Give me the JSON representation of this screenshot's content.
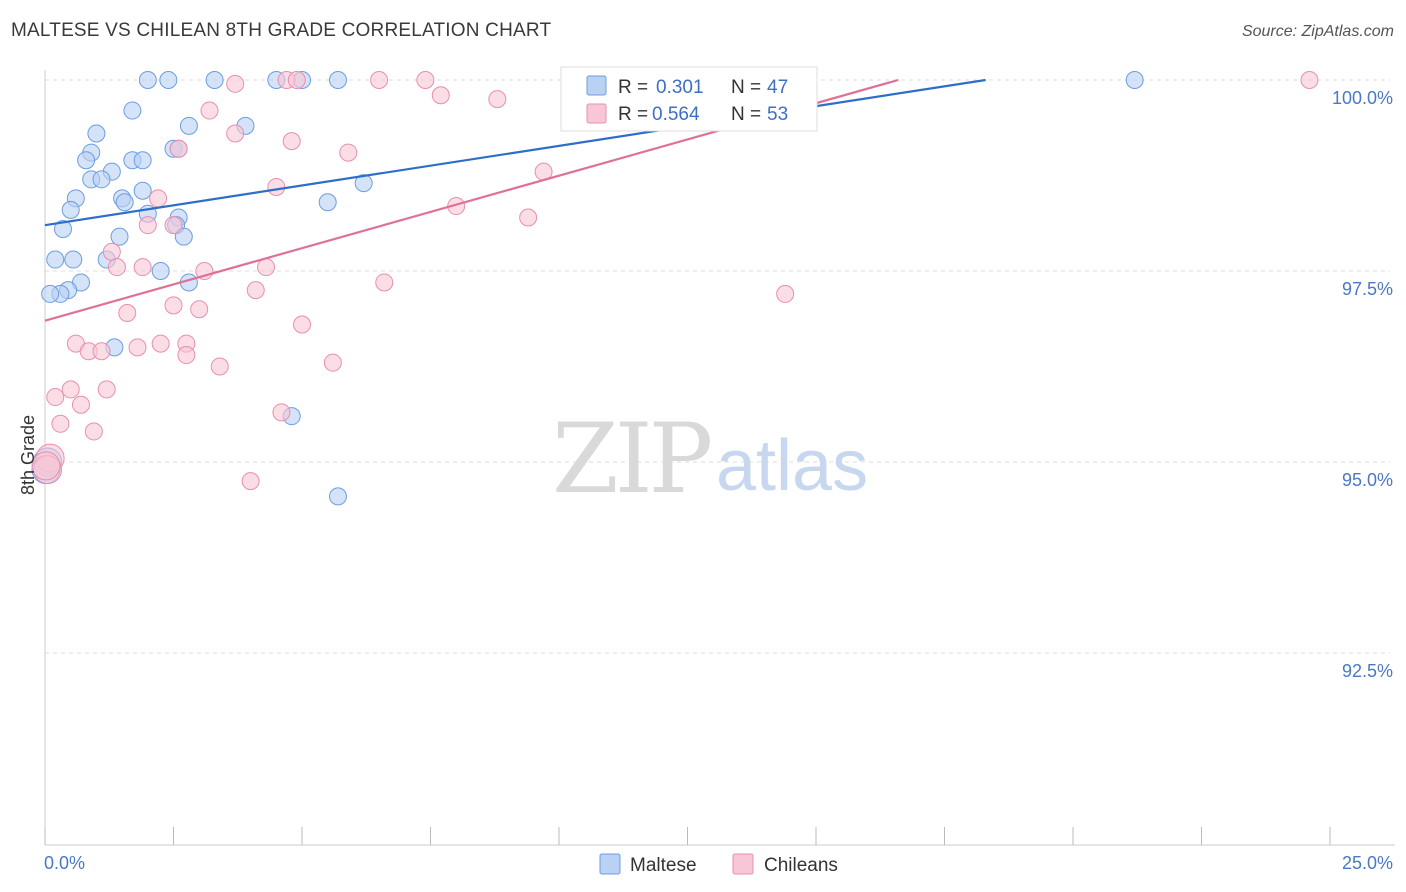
{
  "title": "MALTESE VS CHILEAN 8TH GRADE CORRELATION CHART",
  "source": "Source: ZipAtlas.com",
  "watermark": {
    "zip": "ZIP",
    "atlas": "atlas"
  },
  "colors": {
    "maltese_fill": "#b9d1f3",
    "maltese_stroke": "#6d9de0",
    "maltese_line": "#2d6ec9",
    "chilean_fill": "#f8c6d6",
    "chilean_stroke": "#e88fae",
    "chilean_line": "#e0709a",
    "grid": "#dddddd",
    "axis_text": "#4a78c7"
  },
  "legend": {
    "r_label": "R =",
    "n_label": "N =",
    "maltese": {
      "r": "0.301",
      "n": "47"
    },
    "chileans": {
      "r": "0.564",
      "n": "53"
    }
  },
  "chart_data": {
    "type": "scatter",
    "title": "MALTESE VS CHILEAN 8TH GRADE CORRELATION CHART",
    "xlabel": "",
    "ylabel": "8th Grade",
    "xlim": [
      0,
      25
    ],
    "ylim": [
      90.25,
      100.25
    ],
    "x_tick_labels": [
      "0.0%",
      "25.0%"
    ],
    "y_ticks": [
      92.5,
      95.0,
      97.5,
      100.0
    ],
    "y_tick_labels": [
      "92.5%",
      "95.0%",
      "97.5%",
      "100.0%"
    ],
    "grid": true,
    "legend_position": "top-center",
    "series": [
      {
        "name": "Maltese",
        "r": 0.301,
        "n": 47,
        "trend": {
          "x0": 0,
          "y0": 98.1,
          "x1": 18.3,
          "y1": 100.0
        },
        "points": [
          [
            2.0,
            100.0
          ],
          [
            2.4,
            100.0
          ],
          [
            3.3,
            100.0
          ],
          [
            4.5,
            100.0
          ],
          [
            5.0,
            100.0
          ],
          [
            5.7,
            100.0
          ],
          [
            21.2,
            100.0
          ],
          [
            1.7,
            99.6
          ],
          [
            2.8,
            99.4
          ],
          [
            3.9,
            99.4
          ],
          [
            1.0,
            99.3
          ],
          [
            2.5,
            99.1
          ],
          [
            2.6,
            99.1
          ],
          [
            0.9,
            99.05
          ],
          [
            0.8,
            98.95
          ],
          [
            1.7,
            98.95
          ],
          [
            1.9,
            98.95
          ],
          [
            1.3,
            98.8
          ],
          [
            0.9,
            98.7
          ],
          [
            1.1,
            98.7
          ],
          [
            1.9,
            98.55
          ],
          [
            0.6,
            98.45
          ],
          [
            1.5,
            98.45
          ],
          [
            1.55,
            98.4
          ],
          [
            6.2,
            98.65
          ],
          [
            5.5,
            98.4
          ],
          [
            0.5,
            98.3
          ],
          [
            2.0,
            98.25
          ],
          [
            2.6,
            98.2
          ],
          [
            2.55,
            98.1
          ],
          [
            0.35,
            98.05
          ],
          [
            2.7,
            97.95
          ],
          [
            1.45,
            97.95
          ],
          [
            0.2,
            97.65
          ],
          [
            0.55,
            97.65
          ],
          [
            1.2,
            97.65
          ],
          [
            2.25,
            97.5
          ],
          [
            2.8,
            97.35
          ],
          [
            0.7,
            97.35
          ],
          [
            0.45,
            97.25
          ],
          [
            0.3,
            97.2
          ],
          [
            0.1,
            97.2
          ],
          [
            1.35,
            96.5
          ],
          [
            4.8,
            95.6
          ],
          [
            5.7,
            94.55
          ],
          [
            0.05,
            95.0
          ],
          [
            0.02,
            94.9
          ]
        ]
      },
      {
        "name": "Chileans",
        "r": 0.564,
        "n": 53,
        "trend": {
          "x0": 0,
          "y0": 96.85,
          "x1": 16.6,
          "y1": 100.0
        },
        "points": [
          [
            3.7,
            99.95
          ],
          [
            4.7,
            100.0
          ],
          [
            4.9,
            100.0
          ],
          [
            6.5,
            100.0
          ],
          [
            7.4,
            100.0
          ],
          [
            13.8,
            100.0
          ],
          [
            24.6,
            100.0
          ],
          [
            7.7,
            99.8
          ],
          [
            8.8,
            99.75
          ],
          [
            3.2,
            99.6
          ],
          [
            3.7,
            99.3
          ],
          [
            4.8,
            99.2
          ],
          [
            2.6,
            99.1
          ],
          [
            5.9,
            99.05
          ],
          [
            9.7,
            98.8
          ],
          [
            4.5,
            98.6
          ],
          [
            2.2,
            98.45
          ],
          [
            8.0,
            98.35
          ],
          [
            9.4,
            98.2
          ],
          [
            2.0,
            98.1
          ],
          [
            2.5,
            98.1
          ],
          [
            1.3,
            97.75
          ],
          [
            1.4,
            97.55
          ],
          [
            1.9,
            97.55
          ],
          [
            3.1,
            97.5
          ],
          [
            4.3,
            97.55
          ],
          [
            6.6,
            97.35
          ],
          [
            4.1,
            97.25
          ],
          [
            14.4,
            97.2
          ],
          [
            2.5,
            97.05
          ],
          [
            3.0,
            97.0
          ],
          [
            1.6,
            96.95
          ],
          [
            5.0,
            96.8
          ],
          [
            0.6,
            96.55
          ],
          [
            0.85,
            96.45
          ],
          [
            1.1,
            96.45
          ],
          [
            1.8,
            96.5
          ],
          [
            2.25,
            96.55
          ],
          [
            2.75,
            96.55
          ],
          [
            2.75,
            96.4
          ],
          [
            5.6,
            96.3
          ],
          [
            3.4,
            96.25
          ],
          [
            0.5,
            95.95
          ],
          [
            1.2,
            95.95
          ],
          [
            0.2,
            95.85
          ],
          [
            0.7,
            95.75
          ],
          [
            0.3,
            95.5
          ],
          [
            0.95,
            95.4
          ],
          [
            4.6,
            95.65
          ],
          [
            4.0,
            94.75
          ],
          [
            0.1,
            95.05
          ],
          [
            0.05,
            94.9
          ],
          [
            0.02,
            94.95
          ]
        ]
      }
    ],
    "legend_entries": [
      "Maltese",
      "Chileans"
    ]
  }
}
